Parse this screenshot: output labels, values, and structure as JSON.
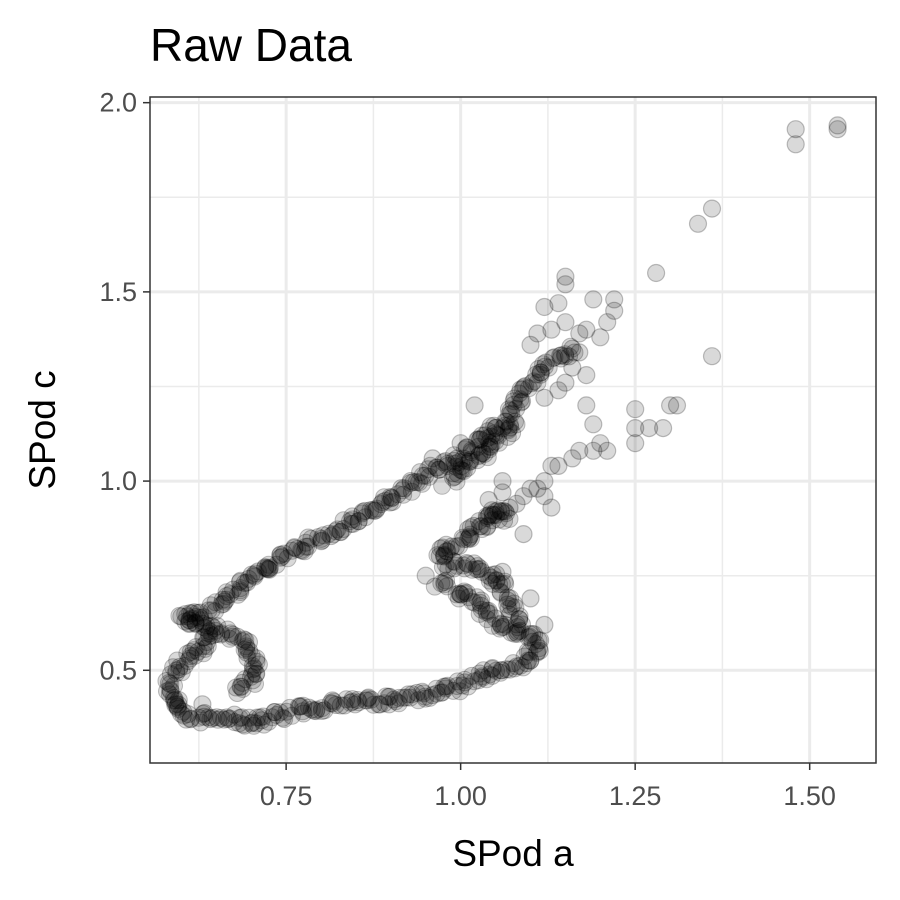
{
  "chart_data": {
    "type": "scatter",
    "title": "Raw Data",
    "xlabel": "SPod a",
    "ylabel": "SPod c",
    "xlim": [
      0.555,
      1.595
    ],
    "ylim": [
      0.255,
      2.015
    ],
    "x_ticks": [
      0.75,
      1.0,
      1.25,
      1.5
    ],
    "x_tick_labels": [
      "0.75",
      "1.00",
      "1.25",
      "1.50"
    ],
    "y_ticks": [
      0.5,
      1.0,
      1.5,
      2.0
    ],
    "y_tick_labels": [
      "0.5",
      "1.0",
      "1.5",
      "2.0"
    ],
    "grid": true,
    "theme": "black-and-white",
    "point_color": "#000000",
    "point_opacity": 0.15,
    "path_segments": [
      [
        [
          0.6,
          0.64
        ],
        [
          0.64,
          0.65
        ],
        [
          0.7,
          0.75
        ],
        [
          0.77,
          0.82
        ],
        [
          0.84,
          0.89
        ],
        [
          0.9,
          0.95
        ],
        [
          0.96,
          1.03
        ],
        [
          1.0,
          1.06
        ],
        [
          1.04,
          1.12
        ],
        [
          1.08,
          1.2
        ],
        [
          1.12,
          1.3
        ],
        [
          1.16,
          1.35
        ]
      ],
      [
        [
          0.6,
          0.64
        ],
        [
          0.63,
          0.62
        ],
        [
          0.64,
          0.58
        ],
        [
          0.62,
          0.55
        ],
        [
          0.6,
          0.52
        ],
        [
          0.58,
          0.46
        ],
        [
          0.59,
          0.41
        ],
        [
          0.61,
          0.37
        ],
        [
          0.66,
          0.38
        ],
        [
          0.7,
          0.36
        ],
        [
          0.76,
          0.39
        ],
        [
          0.82,
          0.41
        ],
        [
          0.88,
          0.42
        ],
        [
          0.94,
          0.43
        ],
        [
          1.0,
          0.46
        ],
        [
          1.05,
          0.5
        ],
        [
          1.1,
          0.53
        ],
        [
          1.11,
          0.57
        ],
        [
          1.09,
          0.61
        ],
        [
          1.08,
          0.64
        ],
        [
          1.07,
          0.68
        ],
        [
          1.06,
          0.72
        ],
        [
          1.04,
          0.75
        ],
        [
          1.02,
          0.77
        ],
        [
          0.98,
          0.78
        ],
        [
          0.97,
          0.8
        ],
        [
          0.99,
          0.83
        ],
        [
          1.01,
          0.85
        ],
        [
          1.03,
          0.88
        ],
        [
          1.05,
          0.92
        ]
      ],
      [
        [
          0.63,
          0.62
        ],
        [
          0.66,
          0.6
        ],
        [
          0.69,
          0.58
        ],
        [
          0.71,
          0.5
        ],
        [
          0.68,
          0.44
        ]
      ],
      [
        [
          0.97,
          0.73
        ],
        [
          1.02,
          0.68
        ],
        [
          1.05,
          0.63
        ],
        [
          1.08,
          0.6
        ]
      ],
      [
        [
          0.98,
          1.0
        ],
        [
          1.02,
          1.05
        ],
        [
          1.05,
          1.1
        ],
        [
          1.08,
          1.15
        ]
      ],
      [
        [
          1.04,
          0.9
        ],
        [
          1.06,
          0.92
        ],
        [
          1.07,
          0.9
        ]
      ]
    ],
    "scatter_points": [
      [
        1.54,
        1.94
      ],
      [
        1.54,
        1.93
      ],
      [
        1.48,
        1.93
      ],
      [
        1.48,
        1.89
      ],
      [
        1.36,
        1.72
      ],
      [
        1.34,
        1.68
      ],
      [
        1.28,
        1.55
      ],
      [
        1.36,
        1.33
      ],
      [
        1.15,
        1.54
      ],
      [
        1.15,
        1.52
      ],
      [
        1.12,
        1.46
      ],
      [
        1.14,
        1.47
      ],
      [
        1.19,
        1.48
      ],
      [
        1.22,
        1.48
      ],
      [
        1.22,
        1.45
      ],
      [
        1.21,
        1.42
      ],
      [
        1.17,
        1.39
      ],
      [
        1.18,
        1.4
      ],
      [
        1.11,
        1.39
      ],
      [
        1.13,
        1.4
      ],
      [
        1.15,
        1.42
      ],
      [
        1.1,
        1.36
      ],
      [
        1.18,
        1.28
      ],
      [
        1.16,
        1.3
      ],
      [
        1.15,
        1.26
      ],
      [
        1.3,
        1.2
      ],
      [
        1.31,
        1.2
      ],
      [
        1.25,
        1.19
      ],
      [
        1.25,
        1.14
      ],
      [
        1.29,
        1.14
      ],
      [
        1.27,
        1.14
      ],
      [
        1.25,
        1.1
      ],
      [
        1.21,
        1.08
      ],
      [
        1.2,
        1.1
      ],
      [
        1.19,
        1.15
      ],
      [
        1.19,
        1.08
      ],
      [
        1.13,
        1.04
      ],
      [
        1.14,
        1.04
      ],
      [
        1.12,
        1.0
      ],
      [
        1.12,
        0.96
      ],
      [
        1.13,
        0.93
      ],
      [
        1.09,
        0.96
      ],
      [
        1.1,
        0.98
      ],
      [
        1.08,
        0.94
      ],
      [
        1.07,
        0.93
      ],
      [
        1.06,
        0.97
      ],
      [
        1.04,
        0.95
      ],
      [
        1.11,
        0.98
      ],
      [
        1.06,
        1.0
      ],
      [
        1.16,
        1.06
      ],
      [
        1.17,
        1.08
      ],
      [
        1.18,
        1.2
      ],
      [
        1.12,
        1.22
      ],
      [
        1.14,
        1.24
      ],
      [
        1.17,
        1.34
      ],
      [
        1.2,
        1.38
      ],
      [
        1.02,
        1.2
      ],
      [
        1.03,
        1.12
      ],
      [
        1.0,
        1.1
      ],
      [
        0.96,
        1.06
      ],
      [
        1.09,
        0.86
      ],
      [
        1.06,
        0.76
      ],
      [
        1.1,
        0.69
      ],
      [
        1.12,
        0.62
      ],
      [
        1.11,
        0.55
      ],
      [
        0.95,
        0.75
      ],
      [
        1.0,
        0.7
      ],
      [
        0.72,
        0.77
      ],
      [
        0.7,
        0.36
      ],
      [
        0.63,
        0.41
      ]
    ]
  }
}
